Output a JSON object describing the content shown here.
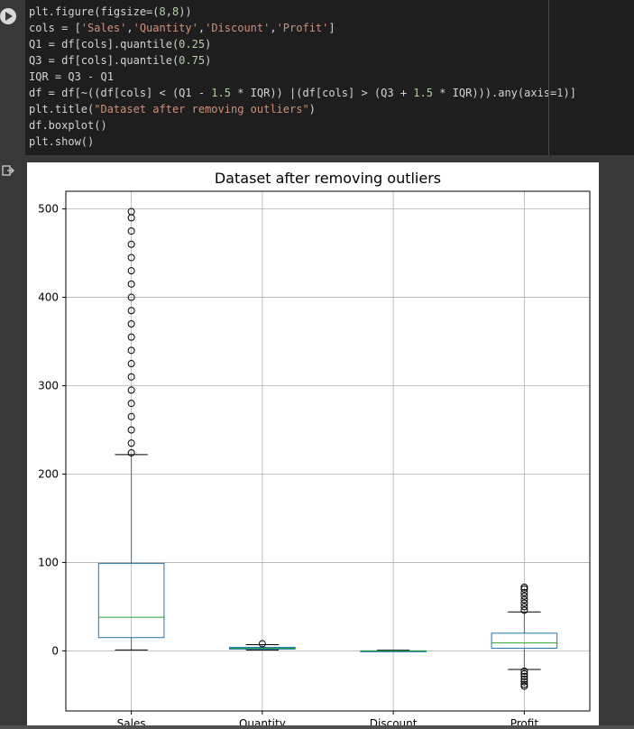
{
  "cell": {
    "code_lines": [
      [
        {
          "t": "plt.figure(figsize=(",
          "c": ""
        },
        {
          "t": "8",
          "c": "num"
        },
        {
          "t": ",",
          "c": ""
        },
        {
          "t": "8",
          "c": "num"
        },
        {
          "t": "))",
          "c": ""
        }
      ],
      [
        {
          "t": "cols = [",
          "c": ""
        },
        {
          "t": "'Sales'",
          "c": "str"
        },
        {
          "t": ",",
          "c": ""
        },
        {
          "t": "'Quantity'",
          "c": "str"
        },
        {
          "t": ",",
          "c": ""
        },
        {
          "t": "'Discount'",
          "c": "str"
        },
        {
          "t": ",",
          "c": ""
        },
        {
          "t": "'Profit'",
          "c": "str"
        },
        {
          "t": "]",
          "c": ""
        }
      ],
      [
        {
          "t": "Q1 = df[cols].quantile(",
          "c": ""
        },
        {
          "t": "0.25",
          "c": "num"
        },
        {
          "t": ")",
          "c": ""
        }
      ],
      [
        {
          "t": "Q3 = df[cols].quantile(",
          "c": ""
        },
        {
          "t": "0.75",
          "c": "num"
        },
        {
          "t": ")",
          "c": ""
        }
      ],
      [
        {
          "t": "IQR = Q3 - Q1",
          "c": ""
        }
      ],
      [
        {
          "t": "df = df[~((df[cols] < (Q1 - ",
          "c": ""
        },
        {
          "t": "1.5",
          "c": "num"
        },
        {
          "t": " * IQR)) |(df[cols] > (Q3 + ",
          "c": ""
        },
        {
          "t": "1.5",
          "c": "num"
        },
        {
          "t": " * IQR))).any(axis=",
          "c": ""
        },
        {
          "t": "1",
          "c": "num"
        },
        {
          "t": ")]",
          "c": ""
        }
      ],
      [
        {
          "t": "plt.title(",
          "c": ""
        },
        {
          "t": "\"Dataset after removing outliers\"",
          "c": "str"
        },
        {
          "t": ")",
          "c": ""
        }
      ],
      [
        {
          "t": "df.boxplot()",
          "c": ""
        }
      ],
      [
        {
          "t": "plt.show()",
          "c": ""
        }
      ]
    ],
    "run_icon": "play-icon",
    "output_icon": "output-arrow-icon"
  },
  "chart_data": {
    "type": "box",
    "title": "Dataset after removing outliers",
    "xlabel": "",
    "ylabel": "",
    "categories": [
      "Sales",
      "Quantity",
      "Discount",
      "Profit"
    ],
    "ylim": [
      -68,
      520
    ],
    "yticks": [
      0,
      100,
      200,
      300,
      400,
      500
    ],
    "grid": true,
    "box_color": "#1f77b4",
    "median_color": "#2ca02c",
    "boxes": [
      {
        "name": "Sales",
        "whisker_low": 1,
        "q1": 15,
        "median": 38,
        "q3": 99,
        "whisker_high": 222,
        "fliers_low": [],
        "fliers_high": [
          224,
          235,
          250,
          265,
          280,
          295,
          310,
          325,
          340,
          355,
          370,
          385,
          400,
          415,
          430,
          445,
          460,
          475,
          490,
          497
        ]
      },
      {
        "name": "Quantity",
        "whisker_low": 1,
        "q1": 2,
        "median": 3,
        "q3": 4,
        "whisker_high": 7,
        "fliers_low": [],
        "fliers_high": [
          8
        ]
      },
      {
        "name": "Discount",
        "whisker_low": 0,
        "q1": 0,
        "median": 0,
        "q3": 0,
        "whisker_high": 0.8,
        "fliers_low": [],
        "fliers_high": []
      },
      {
        "name": "Profit",
        "whisker_low": -21,
        "q1": 3,
        "median": 9,
        "q3": 20,
        "whisker_high": 44,
        "fliers_low": [
          -23,
          -26,
          -29,
          -32,
          -35,
          -38,
          -40
        ],
        "fliers_high": [
          46,
          50,
          54,
          58,
          62,
          66,
          70,
          72
        ]
      }
    ]
  }
}
